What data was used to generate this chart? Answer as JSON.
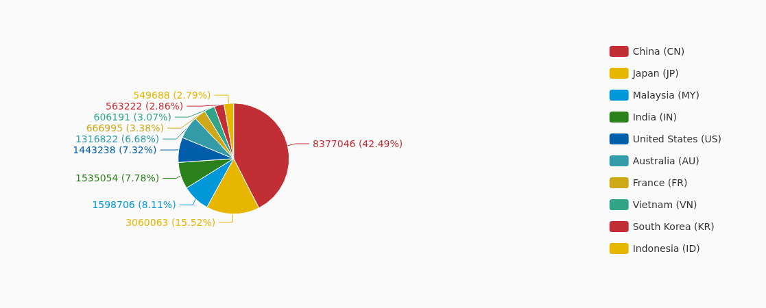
{
  "chart_data": {
    "type": "pie",
    "categories": [
      "China (CN)",
      "Japan (JP)",
      "Malaysia (MY)",
      "India (IN)",
      "United States (US)",
      "Australia (AU)",
      "France (FR)",
      "Vietnam (VN)",
      "South Korea (KR)",
      "Indonesia (ID)"
    ],
    "values": [
      8377046,
      3060063,
      1598706,
      1535054,
      1443238,
      1316822,
      666995,
      606191,
      563222,
      549688
    ],
    "value_labels": [
      "8377046 (42.49%)",
      "3060063 (15.52%)",
      "1598706 (8.11%)",
      "1535054 (7.78%)",
      "1443238 (7.32%)",
      "1316822 (6.68%)",
      "666995 (3.38%)",
      "606191 (3.07%)",
      "563222 (2.86%)",
      "549688 (2.79%)"
    ],
    "colors": [
      "#c12e34",
      "#e6b600",
      "#0098d9",
      "#2b821d",
      "#005eaa",
      "#339ca8",
      "#cda819",
      "#32a487",
      "#c12e34",
      "#e6b600"
    ],
    "legend": "right"
  }
}
